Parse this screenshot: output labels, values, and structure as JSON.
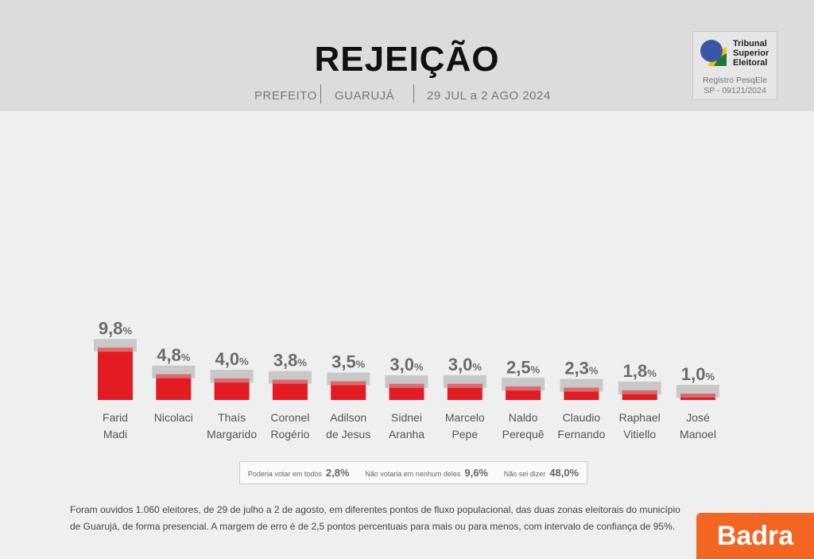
{
  "header": {
    "title": "REJEIÇÃO",
    "office": "PREFEITO",
    "city": "GUARUJÁ",
    "dates": "29 JUL a 2 AGO 2024"
  },
  "tse": {
    "name_line1": "Tribunal",
    "name_line2": "Superior",
    "name_line3": "Eleitoral",
    "reg_line1": "Registro PesqEle",
    "reg_line2": "SP - 09121/2024"
  },
  "chart_data": {
    "type": "bar",
    "title": "REJEIÇÃO",
    "categories": [
      [
        "Farid",
        "Madi"
      ],
      [
        "Nicolaci",
        ""
      ],
      [
        "Thaís",
        "Margarido"
      ],
      [
        "Coronel",
        "Rogério"
      ],
      [
        "Adilson",
        "de Jesus"
      ],
      [
        "Sidnei",
        "Aranha"
      ],
      [
        "Marcelo",
        "Pepe"
      ],
      [
        "Naldo",
        "Perequê"
      ],
      [
        "Claudio",
        "Fernando"
      ],
      [
        "Raphael",
        "Vitiello"
      ],
      [
        "José",
        "Manoel"
      ]
    ],
    "values": [
      9.8,
      4.8,
      4.0,
      3.8,
      3.5,
      3.0,
      3.0,
      2.5,
      2.3,
      1.8,
      1.0
    ],
    "labels": [
      "9,8",
      "4,8",
      "4,0",
      "3,8",
      "3,5",
      "3,0",
      "3,0",
      "2,5",
      "2,3",
      "1,8",
      "1,0"
    ],
    "unit": "%",
    "bar_color": "#e31b23",
    "cap_color": "#c8c8c8"
  },
  "legend": [
    {
      "label": "Poderia votar em todos",
      "value": "2,8%"
    },
    {
      "label": "Não votaria em nenhum deles",
      "value": "9,6%"
    },
    {
      "label": "Não sei dizer",
      "value": "48,0%"
    }
  ],
  "note": "Foram ouvidos 1.060 eleitores, de 29 de julho a 2 de agosto, em diferentes pontos de fluxo populacional, das duas zonas eleitorais do município de Guarujá, de forma presencial. A margem de erro é de 2,5 pontos percentuais para mais ou para menos, com intervalo de confiança de 95%.",
  "brand": "Badra"
}
